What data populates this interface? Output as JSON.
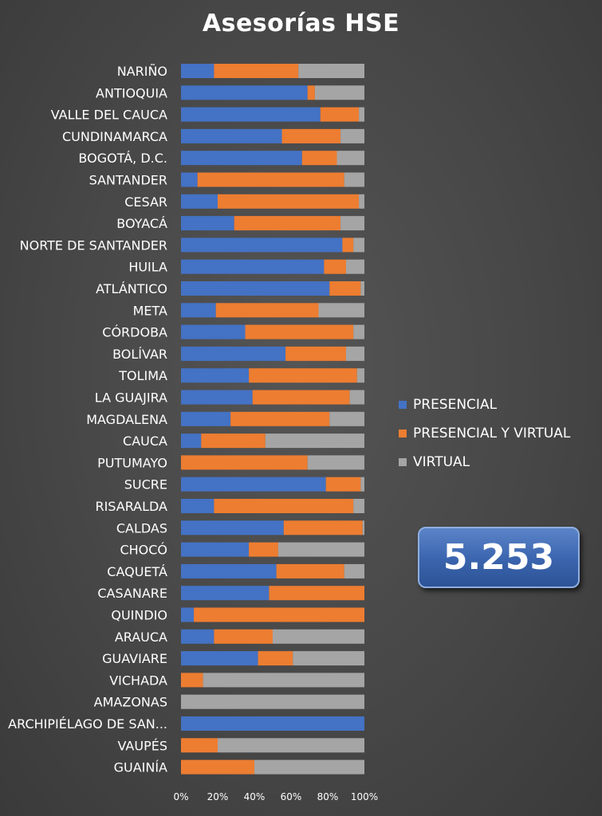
{
  "chart_data": {
    "type": "bar",
    "orientation": "horizontal",
    "stacked": "percent",
    "title": "Asesorías HSE",
    "categories": [
      "NARIÑO",
      "ANTIOQUIA",
      "VALLE DEL CAUCA",
      "CUNDINAMARCA",
      "BOGOTÁ, D.C.",
      "SANTANDER",
      "CESAR",
      "BOYACÁ",
      "NORTE DE SANTANDER",
      "HUILA",
      "ATLÁNTICO",
      "META",
      "CÓRDOBA",
      "BOLÍVAR",
      "TOLIMA",
      "LA GUAJIRA",
      "MAGDALENA",
      "CAUCA",
      "PUTUMAYO",
      "SUCRE",
      "RISARALDA",
      "CALDAS",
      "CHOCÓ",
      "CAQUETÁ",
      "CASANARE",
      "QUINDIO",
      "ARAUCA",
      "GUAVIARE",
      "VICHADA",
      "AMAZONAS",
      "ARCHIPIÉLAGO DE SAN...",
      "VAUPÉS",
      "GUAINÍA"
    ],
    "series": [
      {
        "name": "PRESENCIAL",
        "color": "#4472c4",
        "values": [
          18,
          69,
          76,
          55,
          66,
          9,
          20,
          29,
          88,
          78,
          81,
          19,
          35,
          57,
          37,
          39,
          27,
          11,
          0,
          79,
          18,
          56,
          37,
          52,
          48,
          7,
          18,
          42,
          0,
          0,
          100,
          0,
          0
        ]
      },
      {
        "name": "PRESENCIAL Y VIRTUAL",
        "color": "#ed7d31",
        "values": [
          46,
          4,
          21,
          32,
          19,
          80,
          77,
          58,
          6,
          12,
          17,
          56,
          59,
          33,
          59,
          53,
          54,
          35,
          69,
          19,
          76,
          43,
          16,
          37,
          52,
          93,
          32,
          19,
          12,
          0,
          0,
          20,
          40
        ]
      },
      {
        "name": "VIRTUAL",
        "color": "#a5a5a5",
        "values": [
          36,
          27,
          3,
          13,
          15,
          11,
          3,
          13,
          6,
          10,
          2,
          25,
          6,
          10,
          4,
          8,
          19,
          54,
          31,
          2,
          6,
          1,
          47,
          11,
          0,
          0,
          50,
          39,
          88,
          100,
          0,
          80,
          60
        ]
      }
    ],
    "xlim": [
      0,
      100
    ],
    "x_ticks": [
      "0%",
      "20%",
      "40%",
      "60%",
      "80%",
      "100%"
    ],
    "legend_position": "right",
    "total": "5.253"
  }
}
